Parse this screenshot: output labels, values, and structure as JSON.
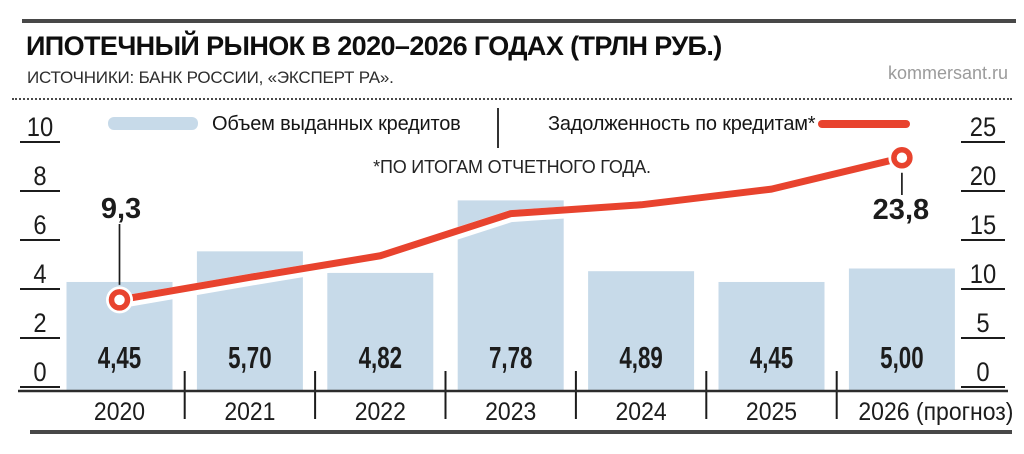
{
  "header": {
    "title": "ИПОТЕЧНЫЙ РЫНОК В 2020–2026 ГОДАХ (ТРЛН РУБ.)",
    "sources": "ИСТОЧНИКИ: БАНК РОССИИ, «ЭКСПЕРТ РА».",
    "watermark": "kommersant.ru"
  },
  "legend": {
    "bar_label": "Объем выданных кредитов",
    "line_label": "Задолженность по кредитам*"
  },
  "footnote": "*ПО ИТОГАМ ОТЧЕТНОГО ГОДА.",
  "colors": {
    "bar_fill": "#c7dae9",
    "line": "#e8432e",
    "axis_text": "#1c1c1c",
    "baseline": "#2b2b2b",
    "rule": "#484848",
    "leader": "#1c1c1c"
  },
  "chart_data": {
    "type": "bar",
    "title": "ИПОТЕЧНЫЙ РЫНОК В 2020–2026 ГОДАХ (ТРЛН РУБ.)",
    "categories": [
      "2020",
      "2021",
      "2022",
      "2023",
      "2024",
      "2025",
      "2026 (прогноз)"
    ],
    "series": [
      {
        "name": "Объем выданных кредитов",
        "type": "bar",
        "axis": "left",
        "values": [
          4.45,
          5.7,
          4.82,
          7.78,
          4.89,
          4.45,
          5.0
        ],
        "value_labels": [
          "4,45",
          "5,70",
          "4,82",
          "7,78",
          "4,89",
          "4,45",
          "5,00"
        ]
      },
      {
        "name": "Задолженность по кредитам*",
        "type": "line",
        "axis": "right",
        "values": [
          9.3,
          11.6,
          13.8,
          18.1,
          19.0,
          20.6,
          23.8
        ],
        "labeled_points": [
          {
            "index": 0,
            "label": "9,3"
          },
          {
            "index": 6,
            "label": "23,8"
          }
        ]
      }
    ],
    "left_axis": {
      "tick_labels": [
        "0",
        "2",
        "4",
        "6",
        "8",
        "10"
      ],
      "ticks": [
        0,
        2,
        4,
        6,
        8,
        10
      ],
      "max": 10
    },
    "right_axis": {
      "tick_labels": [
        "0",
        "5",
        "10",
        "15",
        "20",
        "25"
      ],
      "ticks": [
        0,
        5,
        10,
        15,
        20,
        25
      ],
      "max": 25
    },
    "grid": false,
    "legend_position": "top"
  }
}
